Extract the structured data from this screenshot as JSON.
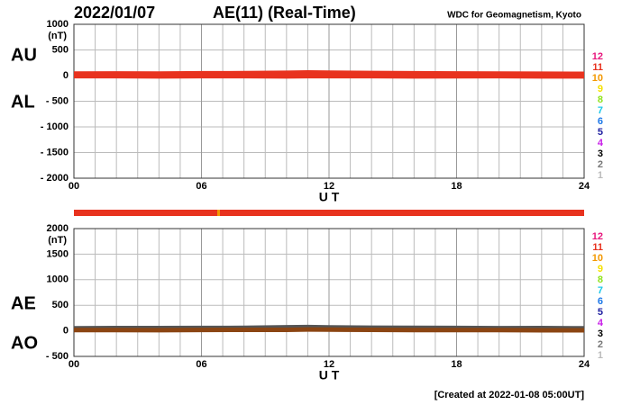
{
  "header": {
    "date": "2022/01/07",
    "title": "AE(11) (Real-Time)",
    "source": "WDC for Geomagnetism, Kyoto"
  },
  "footer": "[Created at 2022-01-08 05:00UT]",
  "chart_data": [
    {
      "type": "line",
      "unit": "(nT)",
      "xlabel": "U T",
      "xlim": [
        0,
        24
      ],
      "xticks": [
        {
          "value": 0,
          "label": "00"
        },
        {
          "value": 6,
          "label": "06"
        },
        {
          "value": 12,
          "label": "12"
        },
        {
          "value": 18,
          "label": "18"
        },
        {
          "value": 24,
          "label": "24"
        }
      ],
      "ylim": [
        -2000,
        1000
      ],
      "yticks": [
        1000,
        500,
        0,
        {
          "value": -500,
          "label": "- 500"
        },
        {
          "value": -1000,
          "label": "- 1000"
        },
        {
          "value": -1500,
          "label": "- 1500"
        },
        {
          "value": -2000,
          "label": "- 2000"
        }
      ],
      "x": [
        0,
        2,
        4,
        6,
        8,
        10,
        11,
        12,
        14,
        16,
        18,
        20,
        22,
        24
      ],
      "series": [
        {
          "name": "AU",
          "color": "#e8321e",
          "values": [
            40,
            42,
            40,
            45,
            48,
            55,
            62,
            58,
            50,
            45,
            42,
            40,
            38,
            35
          ]
        },
        {
          "name": "AL",
          "color": "#e8321e",
          "values": [
            -10,
            -12,
            -15,
            -12,
            -10,
            -15,
            -12,
            -10,
            -12,
            -15,
            -14,
            -12,
            -16,
            -15
          ]
        }
      ],
      "legend": [
        {
          "label": "12",
          "color": "#e8177d"
        },
        {
          "label": "11",
          "color": "#e8321e"
        },
        {
          "label": "10",
          "color": "#f39800"
        },
        {
          "label": "9",
          "color": "#f5e100"
        },
        {
          "label": "8",
          "color": "#8fe31e"
        },
        {
          "label": "7",
          "color": "#1ec8e8"
        },
        {
          "label": "6",
          "color": "#1e78e8"
        },
        {
          "label": "5",
          "color": "#1e1ea0"
        },
        {
          "label": "4",
          "color": "#c81ee8"
        },
        {
          "label": "3",
          "color": "#000000"
        },
        {
          "label": "2",
          "color": "#777777"
        },
        {
          "label": "1",
          "color": "#bbbbbb"
        }
      ]
    },
    {
      "type": "line",
      "unit": "(nT)",
      "xlabel": "U T",
      "xlim": [
        0,
        24
      ],
      "xticks": [
        {
          "value": 0,
          "label": "00"
        },
        {
          "value": 6,
          "label": "06"
        },
        {
          "value": 12,
          "label": "12"
        },
        {
          "value": 18,
          "label": "18"
        },
        {
          "value": 24,
          "label": "24"
        }
      ],
      "ylim": [
        -500,
        2000
      ],
      "yticks": [
        2000,
        1500,
        1000,
        500,
        0,
        {
          "value": -500,
          "label": "- 500"
        }
      ],
      "x": [
        0,
        2,
        4,
        6,
        8,
        10,
        11,
        12,
        14,
        16,
        18,
        20,
        22,
        24
      ],
      "series": [
        {
          "name": "AE",
          "color": "#555555",
          "values": [
            50,
            54,
            55,
            57,
            58,
            70,
            74,
            68,
            62,
            60,
            56,
            52,
            54,
            50
          ]
        },
        {
          "name": "AO",
          "color": "#8b4513",
          "values": [
            15,
            15,
            13,
            17,
            19,
            20,
            25,
            24,
            19,
            15,
            14,
            14,
            11,
            10
          ]
        }
      ],
      "legend": [
        {
          "label": "12",
          "color": "#e8177d"
        },
        {
          "label": "11",
          "color": "#e8321e"
        },
        {
          "label": "10",
          "color": "#f39800"
        },
        {
          "label": "9",
          "color": "#f5e100"
        },
        {
          "label": "8",
          "color": "#8fe31e"
        },
        {
          "label": "7",
          "color": "#1ec8e8"
        },
        {
          "label": "6",
          "color": "#1e78e8"
        },
        {
          "label": "5",
          "color": "#1e1ea0"
        },
        {
          "label": "4",
          "color": "#c81ee8"
        },
        {
          "label": "3",
          "color": "#000000"
        },
        {
          "label": "2",
          "color": "#777777"
        },
        {
          "label": "1",
          "color": "#bbbbbb"
        }
      ]
    }
  ]
}
